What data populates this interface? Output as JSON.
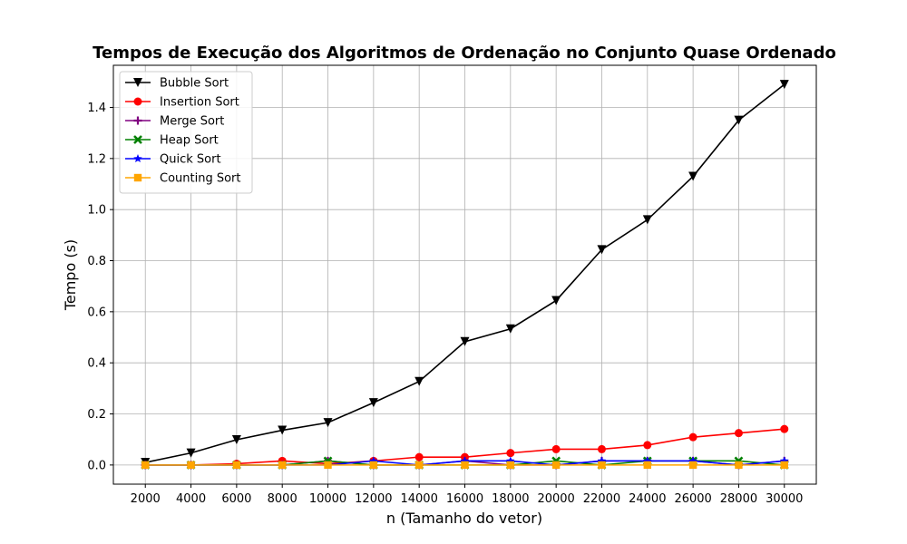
{
  "chart_data": {
    "type": "line",
    "title": "Tempos de Execução dos Algoritmos de Ordenação no Conjunto Quase Ordenado",
    "xlabel": "n (Tamanho do vetor)",
    "ylabel": "Tempo (s)",
    "x": [
      2000,
      4000,
      6000,
      8000,
      10000,
      12000,
      14000,
      16000,
      18000,
      20000,
      22000,
      24000,
      26000,
      28000,
      30000
    ],
    "x_tick_labels": [
      "2000",
      "4000",
      "6000",
      "8000",
      "10000",
      "12000",
      "14000",
      "16000",
      "18000",
      "20000",
      "22000",
      "24000",
      "26000",
      "28000",
      "30000"
    ],
    "y_ticks": [
      0.0,
      0.2,
      0.4,
      0.6,
      0.8,
      1.0,
      1.2,
      1.4
    ],
    "y_tick_labels": [
      "0.0",
      "0.2",
      "0.4",
      "0.6",
      "0.8",
      "1.0",
      "1.2",
      "1.4"
    ],
    "xlim": [
      600,
      31400
    ],
    "ylim": [
      -0.075,
      1.565
    ],
    "grid": true,
    "legend_position": "upper-left",
    "series": [
      {
        "name": "Bubble Sort",
        "color": "#000000",
        "marker": "triangle-down",
        "values": [
          0.01,
          0.047,
          0.099,
          0.136,
          0.166,
          0.244,
          0.327,
          0.483,
          0.533,
          0.644,
          0.843,
          0.96,
          1.13,
          1.35,
          1.49
        ]
      },
      {
        "name": "Insertion Sort",
        "color": "#ff0000",
        "marker": "circle",
        "values": [
          0.0,
          0.0,
          0.005,
          0.016,
          0.005,
          0.016,
          0.031,
          0.031,
          0.047,
          0.062,
          0.062,
          0.078,
          0.109,
          0.125,
          0.141
        ]
      },
      {
        "name": "Merge Sort",
        "color": "#800080",
        "marker": "plus",
        "values": [
          0.0,
          0.0,
          0.0,
          0.0,
          0.016,
          0.0,
          0.0,
          0.016,
          0.0,
          0.0,
          0.016,
          0.016,
          0.016,
          0.0,
          0.016
        ]
      },
      {
        "name": "Heap Sort",
        "color": "#008000",
        "marker": "x",
        "values": [
          0.0,
          0.0,
          0.0,
          0.0,
          0.016,
          0.0,
          0.0,
          0.0,
          0.0,
          0.016,
          0.0,
          0.016,
          0.016,
          0.016,
          0.0
        ]
      },
      {
        "name": "Quick Sort",
        "color": "#0000ff",
        "marker": "star",
        "values": [
          0.0,
          0.0,
          0.0,
          0.0,
          0.0,
          0.016,
          0.0,
          0.016,
          0.016,
          0.0,
          0.016,
          0.016,
          0.016,
          0.0,
          0.016
        ]
      },
      {
        "name": "Counting Sort",
        "color": "#ffa500",
        "marker": "square",
        "values": [
          0.0,
          0.0,
          0.0,
          0.0,
          0.0,
          0.0,
          0.0,
          0.0,
          0.0,
          0.0,
          0.0,
          0.0,
          0.0,
          0.0,
          0.0
        ]
      }
    ]
  }
}
